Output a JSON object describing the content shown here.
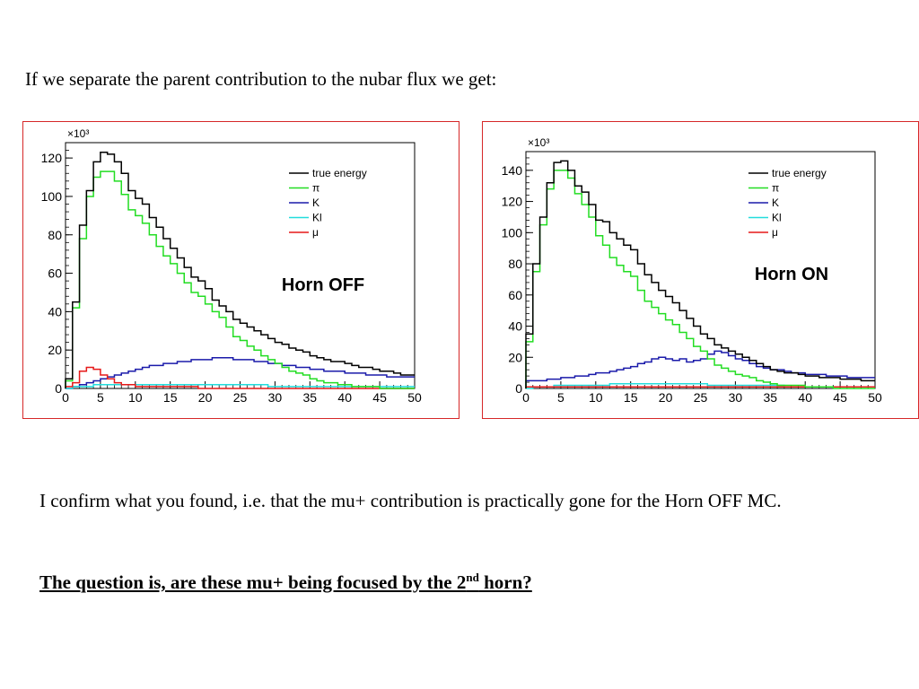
{
  "intro_text": "If we separate the parent contribution to the nubar flux we get:",
  "paragraph": "I confirm what you found, i.e. that the mu+ contribution is practically gone for the Horn OFF MC.",
  "question": {
    "before": "The question is, are these mu+ being focused by the 2",
    "sup": "nd",
    "after": " horn?"
  },
  "colors": {
    "frame": "#d62728",
    "true energy": "#000000",
    "pi": "#22dd22",
    "K": "#1a1aaa",
    "Kl": "#22dddd",
    "mu": "#e61919"
  },
  "chart_data": [
    {
      "type": "line",
      "title": "Horn OFF",
      "axis_multiplier": "×10³",
      "xlim": [
        0,
        50
      ],
      "ylim": [
        0,
        128
      ],
      "xticks": [
        0,
        5,
        10,
        15,
        20,
        25,
        30,
        35,
        40,
        45,
        50
      ],
      "yticks": [
        0,
        20,
        40,
        60,
        80,
        100,
        120
      ],
      "legend": [
        {
          "key": "true energy",
          "label": "true energy"
        },
        {
          "key": "pi",
          "label": "π"
        },
        {
          "key": "K",
          "label": "K"
        },
        {
          "key": "Kl",
          "label": "Kl"
        },
        {
          "key": "mu",
          "label": "μ"
        }
      ],
      "series": [
        {
          "key": "true energy",
          "name": "true energy",
          "values": [
            5,
            45,
            85,
            103,
            118,
            123,
            122,
            118,
            112,
            103,
            99,
            96,
            89,
            84,
            78,
            73,
            68,
            63,
            58,
            56,
            52,
            46,
            43,
            40,
            36,
            34,
            32,
            30,
            28,
            26,
            24,
            23,
            21,
            20,
            19,
            17,
            16,
            15,
            14,
            14,
            13,
            12,
            11,
            11,
            10,
            9,
            9,
            8,
            7,
            7
          ]
        },
        {
          "key": "pi",
          "name": "π",
          "values": [
            4,
            42,
            78,
            100,
            110,
            113,
            113,
            108,
            101,
            93,
            90,
            86,
            80,
            74,
            69,
            65,
            60,
            55,
            50,
            48,
            44,
            40,
            37,
            32,
            27,
            25,
            22,
            20,
            17,
            15,
            13,
            11,
            9,
            8,
            7,
            5,
            4,
            3,
            3,
            2,
            2,
            1,
            1,
            1,
            1,
            0,
            0,
            0,
            0,
            0
          ]
        },
        {
          "key": "K",
          "name": "K",
          "values": [
            0,
            1,
            2,
            3,
            4,
            5,
            6,
            7,
            8,
            9,
            10,
            11,
            12,
            12,
            13,
            13,
            14,
            14,
            15,
            15,
            15,
            16,
            16,
            16,
            15,
            15,
            15,
            14,
            14,
            13,
            13,
            12,
            12,
            11,
            11,
            10,
            10,
            9,
            9,
            9,
            8,
            8,
            8,
            7,
            7,
            7,
            6,
            6,
            6,
            6
          ]
        },
        {
          "key": "Kl",
          "name": "Kl",
          "values": [
            0,
            1,
            1,
            1,
            2,
            2,
            2,
            2,
            2,
            2,
            2,
            2,
            2,
            2,
            2,
            2,
            2,
            2,
            2,
            2,
            2,
            2,
            2,
            2,
            2,
            2,
            2,
            2,
            2,
            1,
            1,
            1,
            1,
            1,
            1,
            1,
            1,
            1,
            1,
            1,
            1,
            1,
            1,
            1,
            1,
            1,
            1,
            1,
            1,
            1
          ]
        },
        {
          "key": "mu",
          "name": "μ",
          "values": [
            1,
            3,
            9,
            11,
            10,
            7,
            5,
            3,
            2,
            2,
            1,
            1,
            1,
            1,
            1,
            1,
            1,
            1,
            1,
            0,
            0,
            0,
            0,
            0,
            0,
            0,
            0,
            0,
            0,
            0,
            0,
            0,
            0,
            0,
            0,
            0,
            0,
            0,
            0,
            0,
            0,
            0,
            0,
            0,
            0,
            0,
            0,
            0,
            0,
            0
          ]
        }
      ]
    },
    {
      "type": "line",
      "title": "Horn ON",
      "axis_multiplier": "×10³",
      "xlim": [
        0,
        50
      ],
      "ylim": [
        0,
        152
      ],
      "xticks": [
        0,
        5,
        10,
        15,
        20,
        25,
        30,
        35,
        40,
        45,
        50
      ],
      "yticks": [
        0,
        20,
        40,
        60,
        80,
        100,
        120,
        140
      ],
      "legend": [
        {
          "key": "true energy",
          "label": "true energy"
        },
        {
          "key": "pi",
          "label": "π"
        },
        {
          "key": "K",
          "label": "K"
        },
        {
          "key": "Kl",
          "label": "Kl"
        },
        {
          "key": "mu",
          "label": "μ"
        }
      ],
      "series": [
        {
          "key": "true energy",
          "name": "true energy",
          "values": [
            35,
            80,
            110,
            132,
            145,
            146,
            140,
            130,
            126,
            118,
            108,
            107,
            100,
            96,
            92,
            89,
            80,
            73,
            68,
            63,
            59,
            55,
            50,
            45,
            40,
            35,
            32,
            28,
            26,
            24,
            22,
            20,
            18,
            16,
            14,
            12,
            11,
            10,
            10,
            9,
            8,
            8,
            7,
            7,
            7,
            6,
            6,
            6,
            5,
            5
          ]
        },
        {
          "key": "pi",
          "name": "π",
          "values": [
            30,
            75,
            105,
            128,
            140,
            140,
            135,
            125,
            118,
            110,
            98,
            92,
            84,
            79,
            75,
            72,
            63,
            56,
            52,
            48,
            44,
            41,
            36,
            32,
            27,
            24,
            19,
            15,
            13,
            11,
            9,
            8,
            7,
            5,
            4,
            3,
            2,
            2,
            2,
            2,
            1,
            1,
            1,
            1,
            0,
            0,
            0,
            0,
            0,
            0
          ]
        },
        {
          "key": "K",
          "name": "K",
          "values": [
            5,
            5,
            5,
            6,
            6,
            7,
            7,
            8,
            8,
            9,
            10,
            10,
            11,
            12,
            13,
            14,
            16,
            17,
            19,
            20,
            19,
            18,
            19,
            17,
            18,
            19,
            22,
            24,
            23,
            21,
            19,
            18,
            16,
            14,
            13,
            12,
            12,
            11,
            10,
            10,
            9,
            9,
            9,
            8,
            8,
            8,
            7,
            7,
            7,
            7
          ]
        },
        {
          "key": "Kl",
          "name": "Kl",
          "values": [
            0,
            1,
            1,
            1,
            2,
            2,
            2,
            2,
            2,
            2,
            2,
            2,
            3,
            3,
            3,
            3,
            3,
            3,
            3,
            3,
            3,
            3,
            3,
            3,
            3,
            3,
            2,
            2,
            2,
            2,
            2,
            2,
            2,
            2,
            2,
            2,
            2,
            1,
            1,
            1,
            1,
            1,
            1,
            1,
            1,
            1,
            1,
            1,
            1,
            1
          ]
        },
        {
          "key": "mu",
          "name": "μ",
          "values": [
            1,
            1,
            1,
            1,
            1,
            1,
            1,
            1,
            1,
            1,
            1,
            1,
            1,
            1,
            1,
            1,
            1,
            1,
            1,
            1,
            1,
            1,
            1,
            1,
            1,
            1,
            1,
            1,
            1,
            1,
            1,
            1,
            1,
            1,
            1,
            1,
            1,
            1,
            1,
            1,
            1,
            1,
            1,
            1,
            1,
            1,
            1,
            1,
            1,
            1
          ]
        }
      ]
    }
  ]
}
